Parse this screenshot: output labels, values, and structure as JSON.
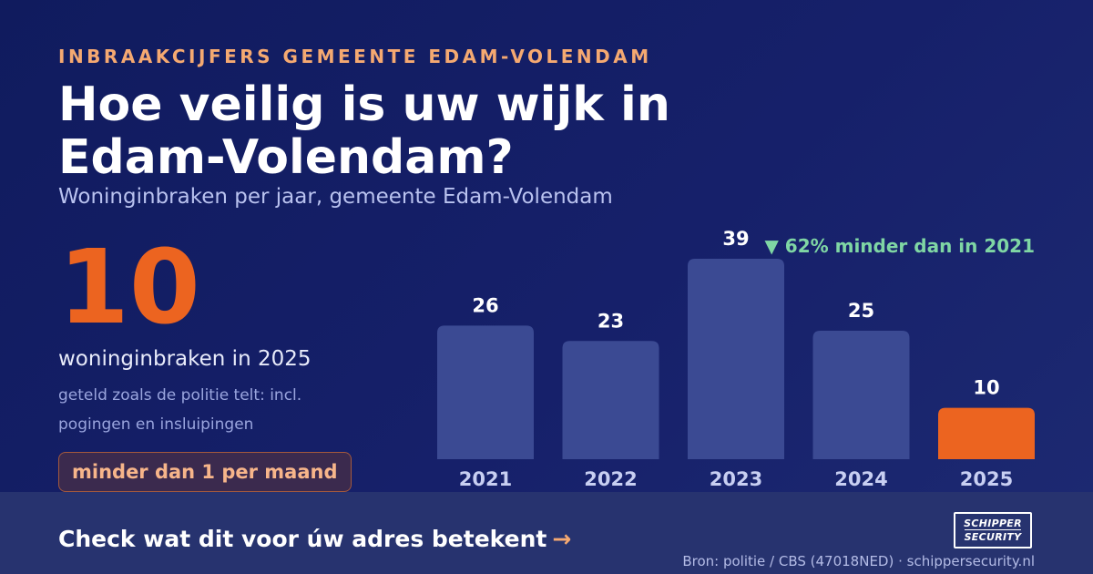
{
  "header": {
    "eyebrow": "INBRAAKCIJFERS GEMEENTE EDAM-VOLENDAM",
    "title": "Hoe veilig is uw wijk in Edam-Volendam?",
    "subtitle": "Woninginbraken per jaar, gemeente Edam-Volendam"
  },
  "highlight": {
    "number": "10",
    "caption": "woninginbraken in 2025",
    "note": "geteld zoals de politie telt: incl. pogingen en insluipingen",
    "pill": "minder dan 1 per maand"
  },
  "chart_data": {
    "type": "bar",
    "categories": [
      "2021",
      "2022",
      "2023",
      "2024",
      "2025"
    ],
    "values": [
      26,
      23,
      39,
      25,
      10
    ],
    "highlight_category": "2025",
    "annotation": "▼ 62% minder dan in 2021",
    "grid": false,
    "legend": "none",
    "ylim": [
      0,
      39
    ],
    "colors": {
      "bar": "#3b4a93",
      "highlight_bar": "#ec6420",
      "value_label": "#ffffff",
      "tick_label": "#c8cff2",
      "annotation": "#7fd6a4"
    }
  },
  "footer": {
    "cta": "Check wat dit voor úw adres betekent",
    "cta_arrow": "→",
    "logo_line1": "SCHIPPER",
    "logo_line2": "SECURITY",
    "source": "Bron: politie / CBS (47018NED) · schippersecurity.nl"
  },
  "colors": {
    "accent": "#ec6420",
    "eyebrow": "#f5a971",
    "background": "#131d64",
    "footer_bar": "#27336f"
  }
}
